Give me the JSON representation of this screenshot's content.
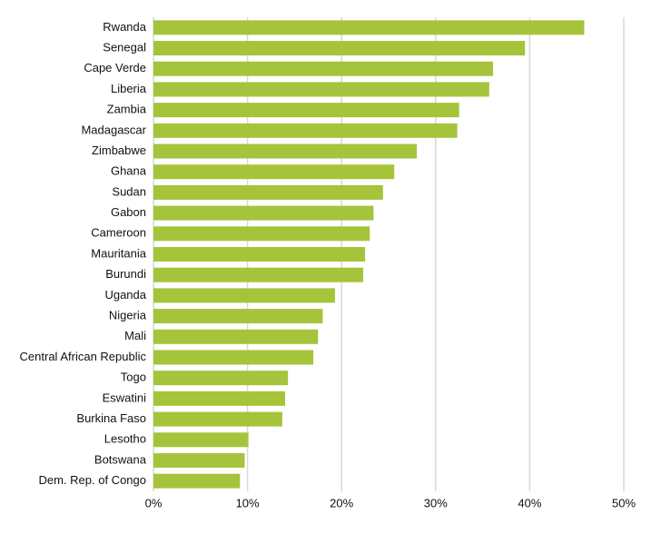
{
  "chart_data": {
    "type": "hbar",
    "categories": [
      "Rwanda",
      "Senegal",
      "Cape Verde",
      "Liberia",
      "Zambia",
      "Madagascar",
      "Zimbabwe",
      "Ghana",
      "Sudan",
      "Gabon",
      "Cameroon",
      "Mauritania",
      "Burundi",
      "Uganda",
      "Nigeria",
      "Mali",
      "Central African Republic",
      "Togo",
      "Eswatini",
      "Burkina Faso",
      "Lesotho",
      "Botswana",
      "Dem. Rep. of Congo"
    ],
    "values": [
      45.8,
      39.5,
      36.1,
      35.7,
      32.5,
      32.3,
      28.0,
      25.6,
      24.4,
      23.4,
      23.0,
      22.5,
      22.3,
      19.3,
      18.0,
      17.5,
      17.0,
      14.3,
      14.0,
      13.7,
      10.1,
      9.7,
      9.2
    ],
    "color": "#a5c43b",
    "xlim": [
      0,
      50
    ],
    "xticks": [
      {
        "value": 0,
        "label": "0%"
      },
      {
        "value": 10,
        "label": "10%"
      },
      {
        "value": 20,
        "label": "20%"
      },
      {
        "value": 30,
        "label": "30%"
      },
      {
        "value": 40,
        "label": "40%"
      },
      {
        "value": 50,
        "label": "50%"
      }
    ],
    "grid": true
  }
}
